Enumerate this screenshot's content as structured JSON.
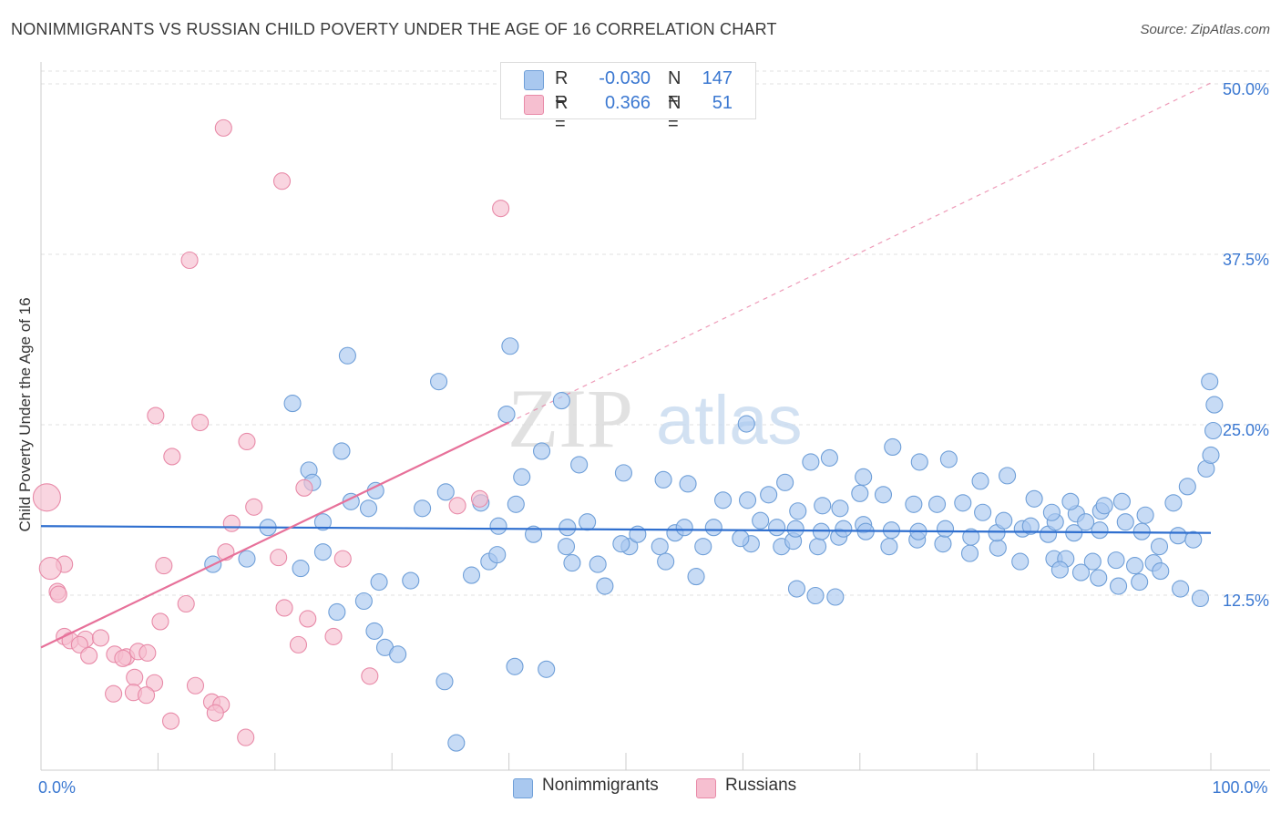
{
  "title": "NONIMMIGRANTS VS RUSSIAN CHILD POVERTY UNDER THE AGE OF 16 CORRELATION CHART",
  "source": "Source: ZipAtlas.com",
  "watermark": {
    "zip": "ZIP",
    "atlas": "atlas"
  },
  "legend": {
    "rows": [
      {
        "r_label": "R =",
        "r_value": "-0.030",
        "n_label": "N =",
        "n_value": "147",
        "color": "#a9c8ef",
        "border": "#6f9fd8"
      },
      {
        "r_label": "R =",
        "r_value": "0.366",
        "n_label": "N =",
        "n_value": "51",
        "color": "#f6bfd0",
        "border": "#e88aa8"
      }
    ]
  },
  "bottom_legend": [
    {
      "label": "Nonimmigrants",
      "color": "#a9c8ef",
      "border": "#6f9fd8"
    },
    {
      "label": "Russians",
      "color": "#f6bfd0",
      "border": "#e88aa8"
    }
  ],
  "chart_data": {
    "type": "scatter",
    "ylabel": "Child Poverty Under the Age of 16",
    "xlim": [
      0,
      100
    ],
    "ylim": [
      0,
      50
    ],
    "x_tick_labels": [
      {
        "value": 0,
        "label": "0.0%"
      },
      {
        "value": 100,
        "label": "100.0%"
      }
    ],
    "y_tick_labels": [
      {
        "value": 12.5,
        "label": "12.5%"
      },
      {
        "value": 25,
        "label": "25.0%"
      },
      {
        "value": 37.5,
        "label": "37.5%"
      },
      {
        "value": 50,
        "label": "50.0%"
      }
    ],
    "grid": "horizontal dashed",
    "series": [
      {
        "name": "Nonimmigrants",
        "color": "#a9c8ef",
        "stroke": "#6f9fd8",
        "trend": {
          "x": [
            0,
            100
          ],
          "y": [
            17.9,
            17.4
          ],
          "color": "#2f6fcf"
        },
        "points": [
          [
            21.5,
            26.9
          ],
          [
            26.2,
            30.4
          ],
          [
            34.0,
            28.5
          ],
          [
            40.1,
            31.1
          ],
          [
            44.5,
            27.1
          ],
          [
            39.8,
            26.1
          ],
          [
            42.8,
            23.4
          ],
          [
            25.7,
            23.4
          ],
          [
            22.9,
            22.0
          ],
          [
            23.2,
            21.1
          ],
          [
            28.6,
            20.5
          ],
          [
            26.5,
            19.7
          ],
          [
            28.0,
            19.2
          ],
          [
            24.1,
            18.2
          ],
          [
            19.4,
            17.8
          ],
          [
            24.1,
            16.0
          ],
          [
            17.6,
            15.5
          ],
          [
            14.7,
            15.1
          ],
          [
            22.2,
            14.8
          ],
          [
            28.9,
            13.8
          ],
          [
            31.6,
            13.9
          ],
          [
            27.6,
            12.4
          ],
          [
            25.3,
            11.6
          ],
          [
            28.5,
            10.2
          ],
          [
            29.4,
            9.0
          ],
          [
            40.5,
            7.6
          ],
          [
            43.2,
            7.4
          ],
          [
            30.5,
            8.5
          ],
          [
            34.5,
            6.5
          ],
          [
            35.5,
            2.0
          ],
          [
            32.6,
            19.2
          ],
          [
            34.6,
            20.4
          ],
          [
            37.6,
            19.6
          ],
          [
            41.1,
            21.5
          ],
          [
            40.6,
            19.5
          ],
          [
            39.1,
            17.9
          ],
          [
            45.0,
            17.8
          ],
          [
            46.7,
            18.2
          ],
          [
            50.3,
            16.4
          ],
          [
            52.9,
            16.4
          ],
          [
            54.2,
            17.4
          ],
          [
            56.6,
            16.4
          ],
          [
            60.7,
            16.6
          ],
          [
            63.3,
            16.4
          ],
          [
            64.3,
            16.8
          ],
          [
            66.4,
            16.4
          ],
          [
            68.2,
            17.1
          ],
          [
            70.3,
            18.0
          ],
          [
            72.5,
            16.4
          ],
          [
            74.9,
            16.9
          ],
          [
            77.1,
            16.6
          ],
          [
            79.4,
            15.9
          ],
          [
            81.8,
            16.3
          ],
          [
            83.7,
            15.3
          ],
          [
            86.6,
            15.5
          ],
          [
            87.6,
            15.5
          ],
          [
            89.9,
            15.3
          ],
          [
            91.9,
            15.4
          ],
          [
            93.5,
            15.0
          ],
          [
            95.1,
            15.2
          ],
          [
            36.8,
            14.3
          ],
          [
            38.3,
            15.3
          ],
          [
            39.0,
            15.8
          ],
          [
            42.1,
            17.3
          ],
          [
            44.9,
            16.4
          ],
          [
            45.4,
            15.2
          ],
          [
            47.6,
            15.1
          ],
          [
            48.2,
            13.5
          ],
          [
            49.6,
            16.6
          ],
          [
            51.0,
            17.3
          ],
          [
            53.4,
            15.3
          ],
          [
            55.0,
            17.8
          ],
          [
            56.0,
            14.2
          ],
          [
            57.5,
            17.8
          ],
          [
            59.8,
            17.0
          ],
          [
            61.5,
            18.3
          ],
          [
            62.9,
            17.8
          ],
          [
            64.5,
            17.7
          ],
          [
            66.7,
            17.5
          ],
          [
            68.6,
            17.7
          ],
          [
            70.5,
            17.5
          ],
          [
            72.7,
            17.6
          ],
          [
            75.0,
            17.5
          ],
          [
            77.3,
            17.7
          ],
          [
            79.5,
            17.1
          ],
          [
            81.7,
            17.4
          ],
          [
            83.9,
            17.7
          ],
          [
            86.1,
            17.3
          ],
          [
            88.3,
            17.4
          ],
          [
            90.5,
            17.6
          ],
          [
            46.0,
            22.4
          ],
          [
            49.8,
            21.8
          ],
          [
            53.2,
            21.3
          ],
          [
            55.3,
            21.0
          ],
          [
            58.3,
            19.8
          ],
          [
            60.4,
            19.8
          ],
          [
            62.2,
            20.2
          ],
          [
            64.7,
            19.0
          ],
          [
            66.8,
            19.4
          ],
          [
            68.3,
            19.2
          ],
          [
            70.0,
            20.3
          ],
          [
            72.0,
            20.2
          ],
          [
            74.6,
            19.5
          ],
          [
            76.6,
            19.5
          ],
          [
            78.8,
            19.6
          ],
          [
            80.5,
            18.9
          ],
          [
            82.3,
            18.3
          ],
          [
            84.6,
            17.9
          ],
          [
            86.7,
            18.2
          ],
          [
            88.5,
            18.8
          ],
          [
            90.6,
            19.0
          ],
          [
            92.4,
            19.7
          ],
          [
            94.4,
            18.7
          ],
          [
            96.8,
            19.6
          ],
          [
            98.0,
            20.8
          ],
          [
            99.6,
            22.1
          ],
          [
            100.0,
            23.1
          ],
          [
            100.2,
            24.9
          ],
          [
            100.3,
            26.8
          ],
          [
            99.9,
            28.5
          ],
          [
            60.3,
            25.4
          ],
          [
            63.6,
            21.1
          ],
          [
            65.8,
            22.6
          ],
          [
            67.4,
            22.9
          ],
          [
            70.3,
            21.5
          ],
          [
            72.8,
            23.7
          ],
          [
            75.1,
            22.6
          ],
          [
            77.6,
            22.8
          ],
          [
            80.3,
            21.2
          ],
          [
            82.6,
            21.6
          ],
          [
            84.9,
            19.9
          ],
          [
            86.4,
            18.9
          ],
          [
            88.0,
            19.7
          ],
          [
            89.3,
            18.2
          ],
          [
            90.9,
            19.4
          ],
          [
            92.7,
            18.2
          ],
          [
            94.1,
            17.5
          ],
          [
            95.6,
            16.4
          ],
          [
            97.2,
            17.2
          ],
          [
            98.5,
            16.9
          ],
          [
            87.1,
            14.7
          ],
          [
            88.9,
            14.5
          ],
          [
            90.4,
            14.1
          ],
          [
            92.1,
            13.5
          ],
          [
            93.9,
            13.8
          ],
          [
            95.7,
            14.6
          ],
          [
            97.4,
            13.3
          ],
          [
            99.1,
            12.6
          ],
          [
            64.6,
            13.3
          ],
          [
            66.2,
            12.8
          ],
          [
            67.9,
            12.7
          ]
        ]
      },
      {
        "name": "Russians",
        "color": "#f6bfd0",
        "stroke": "#e88aa8",
        "trend": {
          "x": [
            0,
            40
          ],
          "y": [
            9.0,
            25.5
          ],
          "color": "#e7719a",
          "dashed_to": [
            100,
            50.4
          ]
        },
        "points": [
          [
            15.6,
            47.1
          ],
          [
            20.6,
            43.2
          ],
          [
            39.3,
            41.2
          ],
          [
            12.7,
            37.4
          ],
          [
            9.8,
            26.0
          ],
          [
            13.6,
            25.5
          ],
          [
            17.6,
            24.1
          ],
          [
            11.2,
            23.0
          ],
          [
            22.5,
            20.7
          ],
          [
            18.2,
            19.3
          ],
          [
            37.5,
            19.9
          ],
          [
            35.6,
            19.4
          ],
          [
            16.3,
            18.1
          ],
          [
            15.8,
            16.0
          ],
          [
            20.3,
            15.6
          ],
          [
            25.8,
            15.5
          ],
          [
            10.5,
            15.0
          ],
          [
            2.0,
            15.1
          ],
          [
            0.8,
            14.8
          ],
          [
            1.4,
            13.1
          ],
          [
            1.5,
            12.9
          ],
          [
            12.4,
            12.2
          ],
          [
            22.8,
            11.1
          ],
          [
            10.2,
            10.9
          ],
          [
            25.0,
            9.8
          ],
          [
            2.0,
            9.8
          ],
          [
            2.5,
            9.5
          ],
          [
            3.8,
            9.6
          ],
          [
            5.1,
            9.7
          ],
          [
            3.3,
            9.2
          ],
          [
            4.1,
            8.4
          ],
          [
            6.3,
            8.5
          ],
          [
            7.3,
            8.3
          ],
          [
            8.3,
            8.7
          ],
          [
            7.0,
            8.2
          ],
          [
            9.1,
            8.6
          ],
          [
            8.0,
            6.8
          ],
          [
            9.7,
            6.4
          ],
          [
            13.2,
            6.2
          ],
          [
            7.9,
            5.7
          ],
          [
            9.0,
            5.5
          ],
          [
            6.2,
            5.6
          ],
          [
            28.1,
            6.9
          ],
          [
            14.6,
            5.0
          ],
          [
            15.4,
            4.8
          ],
          [
            14.9,
            4.2
          ],
          [
            11.1,
            3.6
          ],
          [
            17.5,
            2.4
          ],
          [
            22.0,
            9.2
          ],
          [
            0.5,
            20.0
          ],
          [
            20.8,
            11.9
          ]
        ]
      }
    ]
  }
}
